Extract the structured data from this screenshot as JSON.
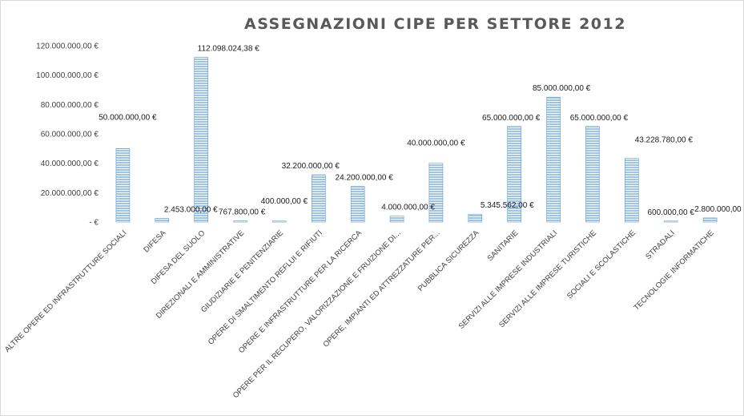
{
  "chart_data": {
    "type": "bar",
    "title": "ASSEGNAZIONI CIPE PER SETTORE 2012",
    "xlabel": "",
    "ylabel": "",
    "ylim": [
      0,
      120000000
    ],
    "yticks": [
      0,
      20000000,
      40000000,
      60000000,
      80000000,
      100000000,
      120000000
    ],
    "ytick_labels": [
      "-   €",
      "20.000.000,00 €",
      "40.000.000,00 €",
      "60.000.000,00 €",
      "80.000.000,00 €",
      "100.000.000,00 €",
      "120.000.000,00 €"
    ],
    "grid": false,
    "legend": "none",
    "bar_color": "#9dc3e6",
    "categories": [
      "ALTRE OPERE ED INFRASTRUTTURE SOCIALI",
      "DIFESA",
      "DIFESA DEL SUOLO",
      "DIREZIONALI E AMMINISTRATIVE",
      "GIUDIZIARIE E PENITENZIARIE",
      "OPERE DI SMALTIMENTO REFLUI E RIFIUTI",
      "OPERE E INFRASTRUTTURE PER LA RICERCA",
      "OPERE PER IL RECUPERO, VALORIZZAZIONE E FRUIZIONE DI...",
      "OPERE, IMPIANTI ED ATTREZZATURE PER...",
      "PUBBLICA SICUREZZA",
      "SANITARIE",
      "SERVIZI ALLE IMPRESE INDUSTRIALI",
      "SERVIZI ALLE IMPRESE TURISTICHE",
      "SOCIALI E SCOLASTICHE",
      "STRADALI",
      "TECNOLOGIE INFORMATICHE"
    ],
    "values": [
      50000000,
      2453000,
      112098024.38,
      767800,
      400000,
      32200000,
      24200000,
      4000000,
      40000000,
      5345562,
      65000000,
      85000000,
      65000000,
      43228780,
      600000,
      2800000
    ],
    "data_labels": [
      "50.000.000,00 €",
      "2.453.000,00 €",
      "112.098.024,38 €",
      "767.800,00 €",
      "400.000,00 €",
      "32.200.000,00 €",
      "24.200.000,00 €",
      "4.000.000,00 €",
      "40.000.000,00 €",
      "5.345.562,00 €",
      "65.000.000,00 €",
      "85.000.000,00 €",
      "65.000.000,00 €",
      "43.228.780,00 €",
      "600.000,00 €",
      "2.800.000,00 €"
    ]
  }
}
